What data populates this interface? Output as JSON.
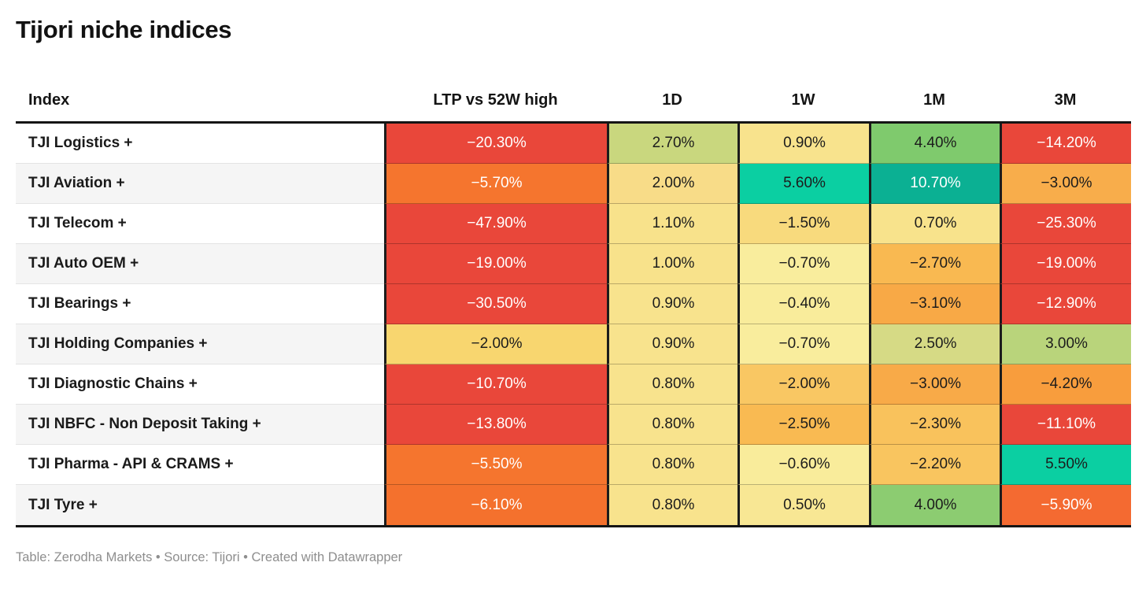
{
  "chart_data": {
    "type": "table",
    "title": "Tijori niche indices",
    "columns": [
      "Index",
      "LTP vs 52W high",
      "1D",
      "1W",
      "1M",
      "3M"
    ],
    "value_format": "percent, two decimals, unicode minus",
    "legend_position": "none",
    "rows": [
      {
        "label": "TJI Logistics +",
        "values": [
          -20.3,
          2.7,
          0.9,
          4.4,
          -14.2
        ],
        "display": [
          "−20.30%",
          "2.70%",
          "0.90%",
          "4.40%",
          "−14.20%"
        ],
        "bg": [
          "#e9473a",
          "#c9d77e",
          "#f8e38d",
          "#7fca6d",
          "#e9473a"
        ],
        "fg": [
          "#ffffff",
          "#1c1c1c",
          "#1c1c1c",
          "#1c1c1c",
          "#ffffff"
        ]
      },
      {
        "label": "TJI Aviation +",
        "values": [
          -5.7,
          2.0,
          5.6,
          10.7,
          -3.0
        ],
        "display": [
          "−5.70%",
          "2.00%",
          "5.60%",
          "10.70%",
          "−3.00%"
        ],
        "bg": [
          "#f5752e",
          "#f8dc88",
          "#0bcfa2",
          "#0bb093",
          "#f8ad4b"
        ],
        "fg": [
          "#ffffff",
          "#1c1c1c",
          "#1c1c1c",
          "#ffffff",
          "#1c1c1c"
        ]
      },
      {
        "label": "TJI Telecom +",
        "values": [
          -47.9,
          1.1,
          -1.5,
          0.7,
          -25.3
        ],
        "display": [
          "−47.90%",
          "1.10%",
          "−1.50%",
          "0.70%",
          "−25.30%"
        ],
        "bg": [
          "#e9473a",
          "#f8e28b",
          "#f8da7d",
          "#f8e38c",
          "#e9473a"
        ],
        "fg": [
          "#ffffff",
          "#1c1c1c",
          "#1c1c1c",
          "#1c1c1c",
          "#ffffff"
        ]
      },
      {
        "label": "TJI Auto OEM +",
        "values": [
          -19.0,
          1.0,
          -0.7,
          -2.7,
          -19.0
        ],
        "display": [
          "−19.00%",
          "1.00%",
          "−0.70%",
          "−2.70%",
          "−19.00%"
        ],
        "bg": [
          "#e9473a",
          "#f8e28b",
          "#f9ed9d",
          "#f9b951",
          "#e9473a"
        ],
        "fg": [
          "#ffffff",
          "#1c1c1c",
          "#1c1c1c",
          "#1c1c1c",
          "#ffffff"
        ]
      },
      {
        "label": "TJI Bearings +",
        "values": [
          -30.5,
          0.9,
          -0.4,
          -3.1,
          -12.9
        ],
        "display": [
          "−30.50%",
          "0.90%",
          "−0.40%",
          "−3.10%",
          "−12.90%"
        ],
        "bg": [
          "#e9473a",
          "#f8e38d",
          "#f9ec9b",
          "#f8a946",
          "#e9473a"
        ],
        "fg": [
          "#ffffff",
          "#1c1c1c",
          "#1c1c1c",
          "#1c1c1c",
          "#ffffff"
        ]
      },
      {
        "label": "TJI Holding Companies +",
        "values": [
          -2.0,
          0.9,
          -0.7,
          2.5,
          3.0
        ],
        "display": [
          "−2.00%",
          "0.90%",
          "−0.70%",
          "2.50%",
          "3.00%"
        ],
        "bg": [
          "#f8d66f",
          "#f8e38d",
          "#f9ed9d",
          "#d6da85",
          "#b9d47b"
        ],
        "fg": [
          "#1c1c1c",
          "#1c1c1c",
          "#1c1c1c",
          "#1c1c1c",
          "#1c1c1c"
        ]
      },
      {
        "label": "TJI Diagnostic Chains +",
        "values": [
          -10.7,
          0.8,
          -2.0,
          -3.0,
          -4.2
        ],
        "display": [
          "−10.70%",
          "0.80%",
          "−2.00%",
          "−3.00%",
          "−4.20%"
        ],
        "bg": [
          "#e9473a",
          "#f8e38d",
          "#f9c763",
          "#f8aa48",
          "#f89d3d"
        ],
        "fg": [
          "#ffffff",
          "#1c1c1c",
          "#1c1c1c",
          "#1c1c1c",
          "#1c1c1c"
        ]
      },
      {
        "label": "TJI NBFC - Non Deposit Taking +",
        "values": [
          -13.8,
          0.8,
          -2.5,
          -2.3,
          -11.1
        ],
        "display": [
          "−13.80%",
          "0.80%",
          "−2.50%",
          "−2.30%",
          "−11.10%"
        ],
        "bg": [
          "#e9473a",
          "#f8e38d",
          "#f9ba52",
          "#f9c25c",
          "#e9473a"
        ],
        "fg": [
          "#ffffff",
          "#1c1c1c",
          "#1c1c1c",
          "#1c1c1c",
          "#ffffff"
        ]
      },
      {
        "label": "TJI Pharma - API & CRAMS +",
        "values": [
          -5.5,
          0.8,
          -0.6,
          -2.2,
          5.5
        ],
        "display": [
          "−5.50%",
          "0.80%",
          "−0.60%",
          "−2.20%",
          "5.50%"
        ],
        "bg": [
          "#f5752e",
          "#f8e38d",
          "#f9ec9b",
          "#f9c55f",
          "#0bcfa2"
        ],
        "fg": [
          "#ffffff",
          "#1c1c1c",
          "#1c1c1c",
          "#1c1c1c",
          "#1c1c1c"
        ]
      },
      {
        "label": "TJI Tyre +",
        "values": [
          -6.1,
          0.8,
          0.5,
          4.0,
          -5.9
        ],
        "display": [
          "−6.10%",
          "0.80%",
          "0.50%",
          "4.00%",
          "−5.90%"
        ],
        "bg": [
          "#f4712d",
          "#f8e38d",
          "#f8e794",
          "#8ccc71",
          "#f46a31"
        ],
        "fg": [
          "#ffffff",
          "#1c1c1c",
          "#1c1c1c",
          "#1c1c1c",
          "#ffffff"
        ]
      }
    ],
    "footer": "Table: Zerodha Markets • Source: Tijori • Created with Datawrapper"
  }
}
